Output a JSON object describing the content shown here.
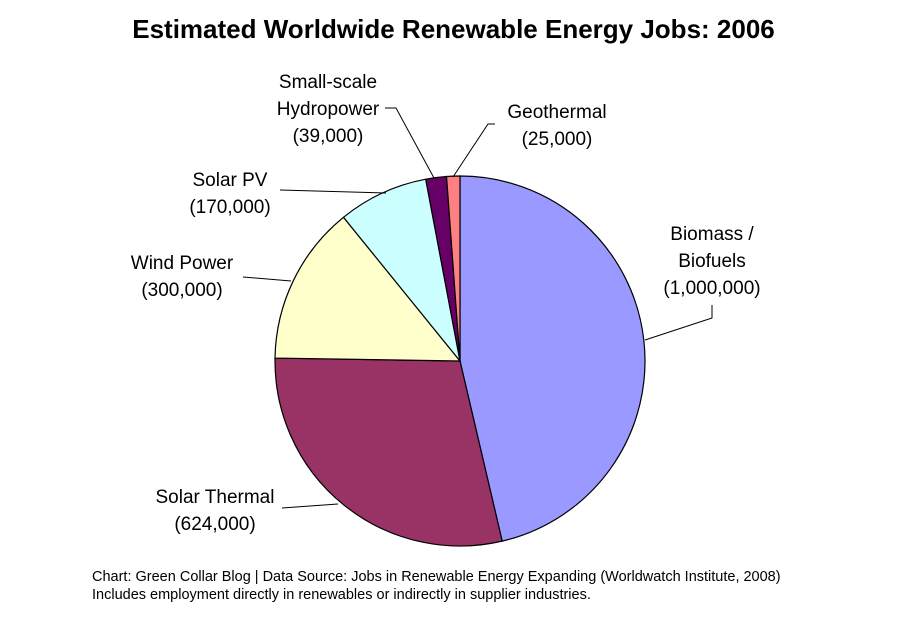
{
  "chart_data": {
    "type": "pie",
    "title": "Estimated Worldwide Renewable Energy Jobs: 2006",
    "categories": [
      "Biomass / Biofuels",
      "Solar Thermal",
      "Wind Power",
      "Solar PV",
      "Small-scale Hydropower",
      "Geothermal"
    ],
    "values": [
      1000000,
      624000,
      300000,
      170000,
      39000,
      25000
    ],
    "value_labels": [
      "(1,000,000)",
      "(624,000)",
      "(300,000)",
      "(170,000)",
      "(39,000)",
      "(25,000)"
    ],
    "colors": [
      "#9999ff",
      "#993366",
      "#ffffcc",
      "#ccffff",
      "#660066",
      "#ff8080"
    ],
    "notes": [
      "Chart: Green Collar Blog | Data Source: Jobs in Renewable Energy Expanding (Worldwatch Institute, 2008)",
      "Includes employment directly in renewables or indirectly in supplier industries."
    ]
  }
}
